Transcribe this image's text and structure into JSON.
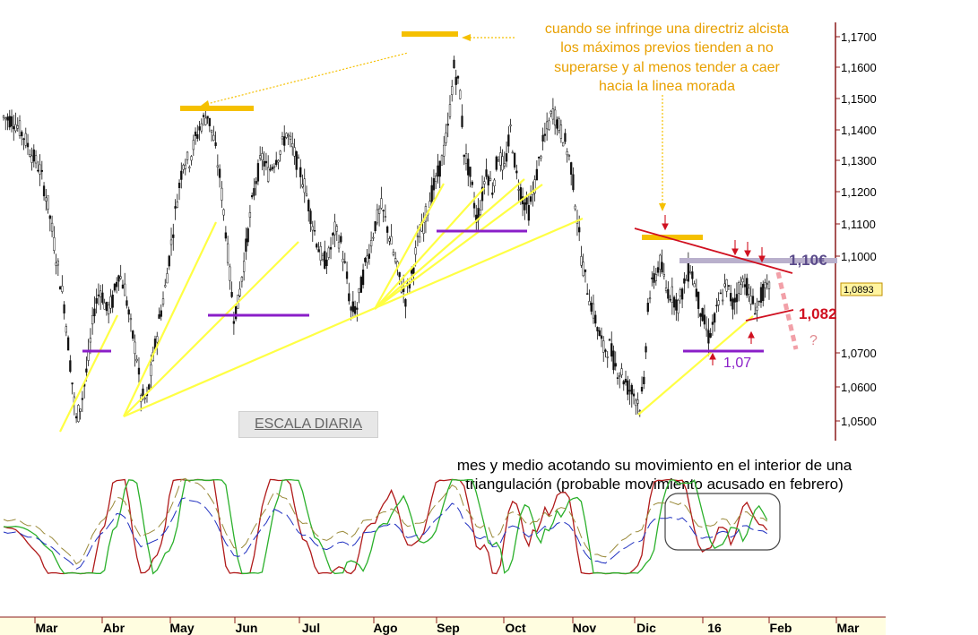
{
  "chart_data": {
    "type": "candlestick",
    "instrument_scale_label": "ESCALA DIARIA",
    "y_ticks": [
      "1,1700",
      "1,1600",
      "1,1500",
      "1,1400",
      "1,1300",
      "1,1200",
      "1,1100",
      "1,1000",
      "1,0700",
      "1,0600",
      "1,0500"
    ],
    "y_tick_values": [
      1.17,
      1.16,
      1.15,
      1.14,
      1.13,
      1.12,
      1.11,
      1.1,
      1.07,
      1.06,
      1.05
    ],
    "ylim": [
      1.045,
      1.18
    ],
    "last_price_label": "1,0893",
    "last_price_value": 1.0893,
    "months": [
      "Mar",
      "Abr",
      "May",
      "Jun",
      "Jul",
      "Ago",
      "Sep",
      "Oct",
      "Nov",
      "Dic",
      "16",
      "Feb",
      "Mar"
    ],
    "price_path": [
      [
        0,
        1.144
      ],
      [
        5,
        1.143
      ],
      [
        10,
        1.138
      ],
      [
        14,
        1.132
      ],
      [
        18,
        1.127
      ],
      [
        22,
        1.116
      ],
      [
        26,
        1.1
      ],
      [
        30,
        1.085
      ],
      [
        33,
        1.067
      ],
      [
        36,
        1.05
      ],
      [
        39,
        1.057
      ],
      [
        42,
        1.068
      ],
      [
        45,
        1.084
      ],
      [
        48,
        1.09
      ],
      [
        51,
        1.083
      ],
      [
        54,
        1.086
      ],
      [
        57,
        1.095
      ],
      [
        60,
        1.09
      ],
      [
        63,
        1.078
      ],
      [
        66,
        1.069
      ],
      [
        68,
        1.057
      ],
      [
        71,
        1.056
      ],
      [
        74,
        1.068
      ],
      [
        77,
        1.08
      ],
      [
        80,
        1.09
      ],
      [
        83,
        1.104
      ],
      [
        86,
        1.118
      ],
      [
        89,
        1.13
      ],
      [
        92,
        1.13
      ],
      [
        95,
        1.137
      ],
      [
        98,
        1.142
      ],
      [
        101,
        1.145
      ],
      [
        104,
        1.137
      ],
      [
        107,
        1.125
      ],
      [
        110,
        1.108
      ],
      [
        112,
        1.094
      ],
      [
        114,
        1.082
      ],
      [
        116,
        1.085
      ],
      [
        119,
        1.098
      ],
      [
        122,
        1.112
      ],
      [
        125,
        1.124
      ],
      [
        128,
        1.131
      ],
      [
        131,
        1.126
      ],
      [
        134,
        1.13
      ],
      [
        137,
        1.133
      ],
      [
        140,
        1.139
      ],
      [
        143,
        1.134
      ],
      [
        146,
        1.128
      ],
      [
        149,
        1.122
      ],
      [
        152,
        1.113
      ],
      [
        155,
        1.105
      ],
      [
        158,
        1.098
      ],
      [
        161,
        1.1
      ],
      [
        164,
        1.108
      ],
      [
        167,
        1.104
      ],
      [
        170,
        1.093
      ],
      [
        172,
        1.083
      ],
      [
        175,
        1.084
      ],
      [
        178,
        1.094
      ],
      [
        181,
        1.102
      ],
      [
        184,
        1.11
      ],
      [
        187,
        1.115
      ],
      [
        190,
        1.109
      ],
      [
        193,
        1.101
      ],
      [
        196,
        1.093
      ],
      [
        199,
        1.087
      ],
      [
        202,
        1.094
      ],
      [
        205,
        1.104
      ],
      [
        208,
        1.11
      ],
      [
        211,
        1.118
      ],
      [
        214,
        1.123
      ],
      [
        217,
        1.13
      ],
      [
        220,
        1.14
      ],
      [
        223,
        1.16
      ],
      [
        226,
        1.152
      ],
      [
        228,
        1.133
      ],
      [
        231,
        1.125
      ],
      [
        234,
        1.112
      ],
      [
        236,
        1.115
      ],
      [
        239,
        1.127
      ],
      [
        242,
        1.121
      ],
      [
        245,
        1.132
      ],
      [
        248,
        1.127
      ],
      [
        251,
        1.14
      ],
      [
        254,
        1.125
      ],
      [
        257,
        1.118
      ],
      [
        260,
        1.114
      ],
      [
        263,
        1.122
      ],
      [
        266,
        1.133
      ],
      [
        269,
        1.14
      ],
      [
        272,
        1.146
      ],
      [
        275,
        1.141
      ],
      [
        278,
        1.136
      ],
      [
        281,
        1.128
      ],
      [
        284,
        1.112
      ],
      [
        286,
        1.1
      ],
      [
        288,
        1.093
      ],
      [
        291,
        1.085
      ],
      [
        294,
        1.078
      ],
      [
        297,
        1.071
      ],
      [
        300,
        1.072
      ],
      [
        303,
        1.066
      ],
      [
        306,
        1.064
      ],
      [
        309,
        1.06
      ],
      [
        312,
        1.058
      ],
      [
        315,
        1.055
      ],
      [
        317,
        1.06
      ],
      [
        319,
        1.085
      ],
      [
        322,
        1.093
      ],
      [
        325,
        1.098
      ],
      [
        328,
        1.09
      ],
      [
        331,
        1.088
      ],
      [
        334,
        1.085
      ],
      [
        337,
        1.091
      ],
      [
        340,
        1.097
      ],
      [
        343,
        1.089
      ],
      [
        346,
        1.081
      ],
      [
        349,
        1.075
      ],
      [
        352,
        1.08
      ],
      [
        355,
        1.087
      ],
      [
        358,
        1.091
      ],
      [
        361,
        1.085
      ],
      [
        364,
        1.09
      ],
      [
        367,
        1.093
      ],
      [
        370,
        1.086
      ],
      [
        373,
        1.084
      ],
      [
        376,
        1.089
      ],
      [
        379,
        1.0893
      ]
    ]
  },
  "annotations": {
    "top_note": [
      "cuando se infringe una directriz alcista",
      "los máximos previos tienden a no",
      "superarse y al menos tender a caer",
      "hacia la linea morada"
    ],
    "bottom_note": [
      "mes y medio acotando su movimiento en el interior de una",
      "triangulación (probable movimiento acusado en febrero)"
    ],
    "level_110": "1,10€",
    "level_1082": "1,082",
    "level_107": "1,07",
    "question": "?"
  },
  "colors": {
    "candles": "#111111",
    "support_lines": "#ffff44",
    "horizontal_support": "#8a1ec8",
    "previous_highs": "#f5c000",
    "resistance_line": "#d01020",
    "level_110_band": "#b9b0cc",
    "oscillator_red": "#b01a1a",
    "oscillator_green": "#2bb02b",
    "oscillator_olive": "#9a8a3a",
    "oscillator_blue": "#2030c0",
    "axis": "#8b1a1a"
  }
}
